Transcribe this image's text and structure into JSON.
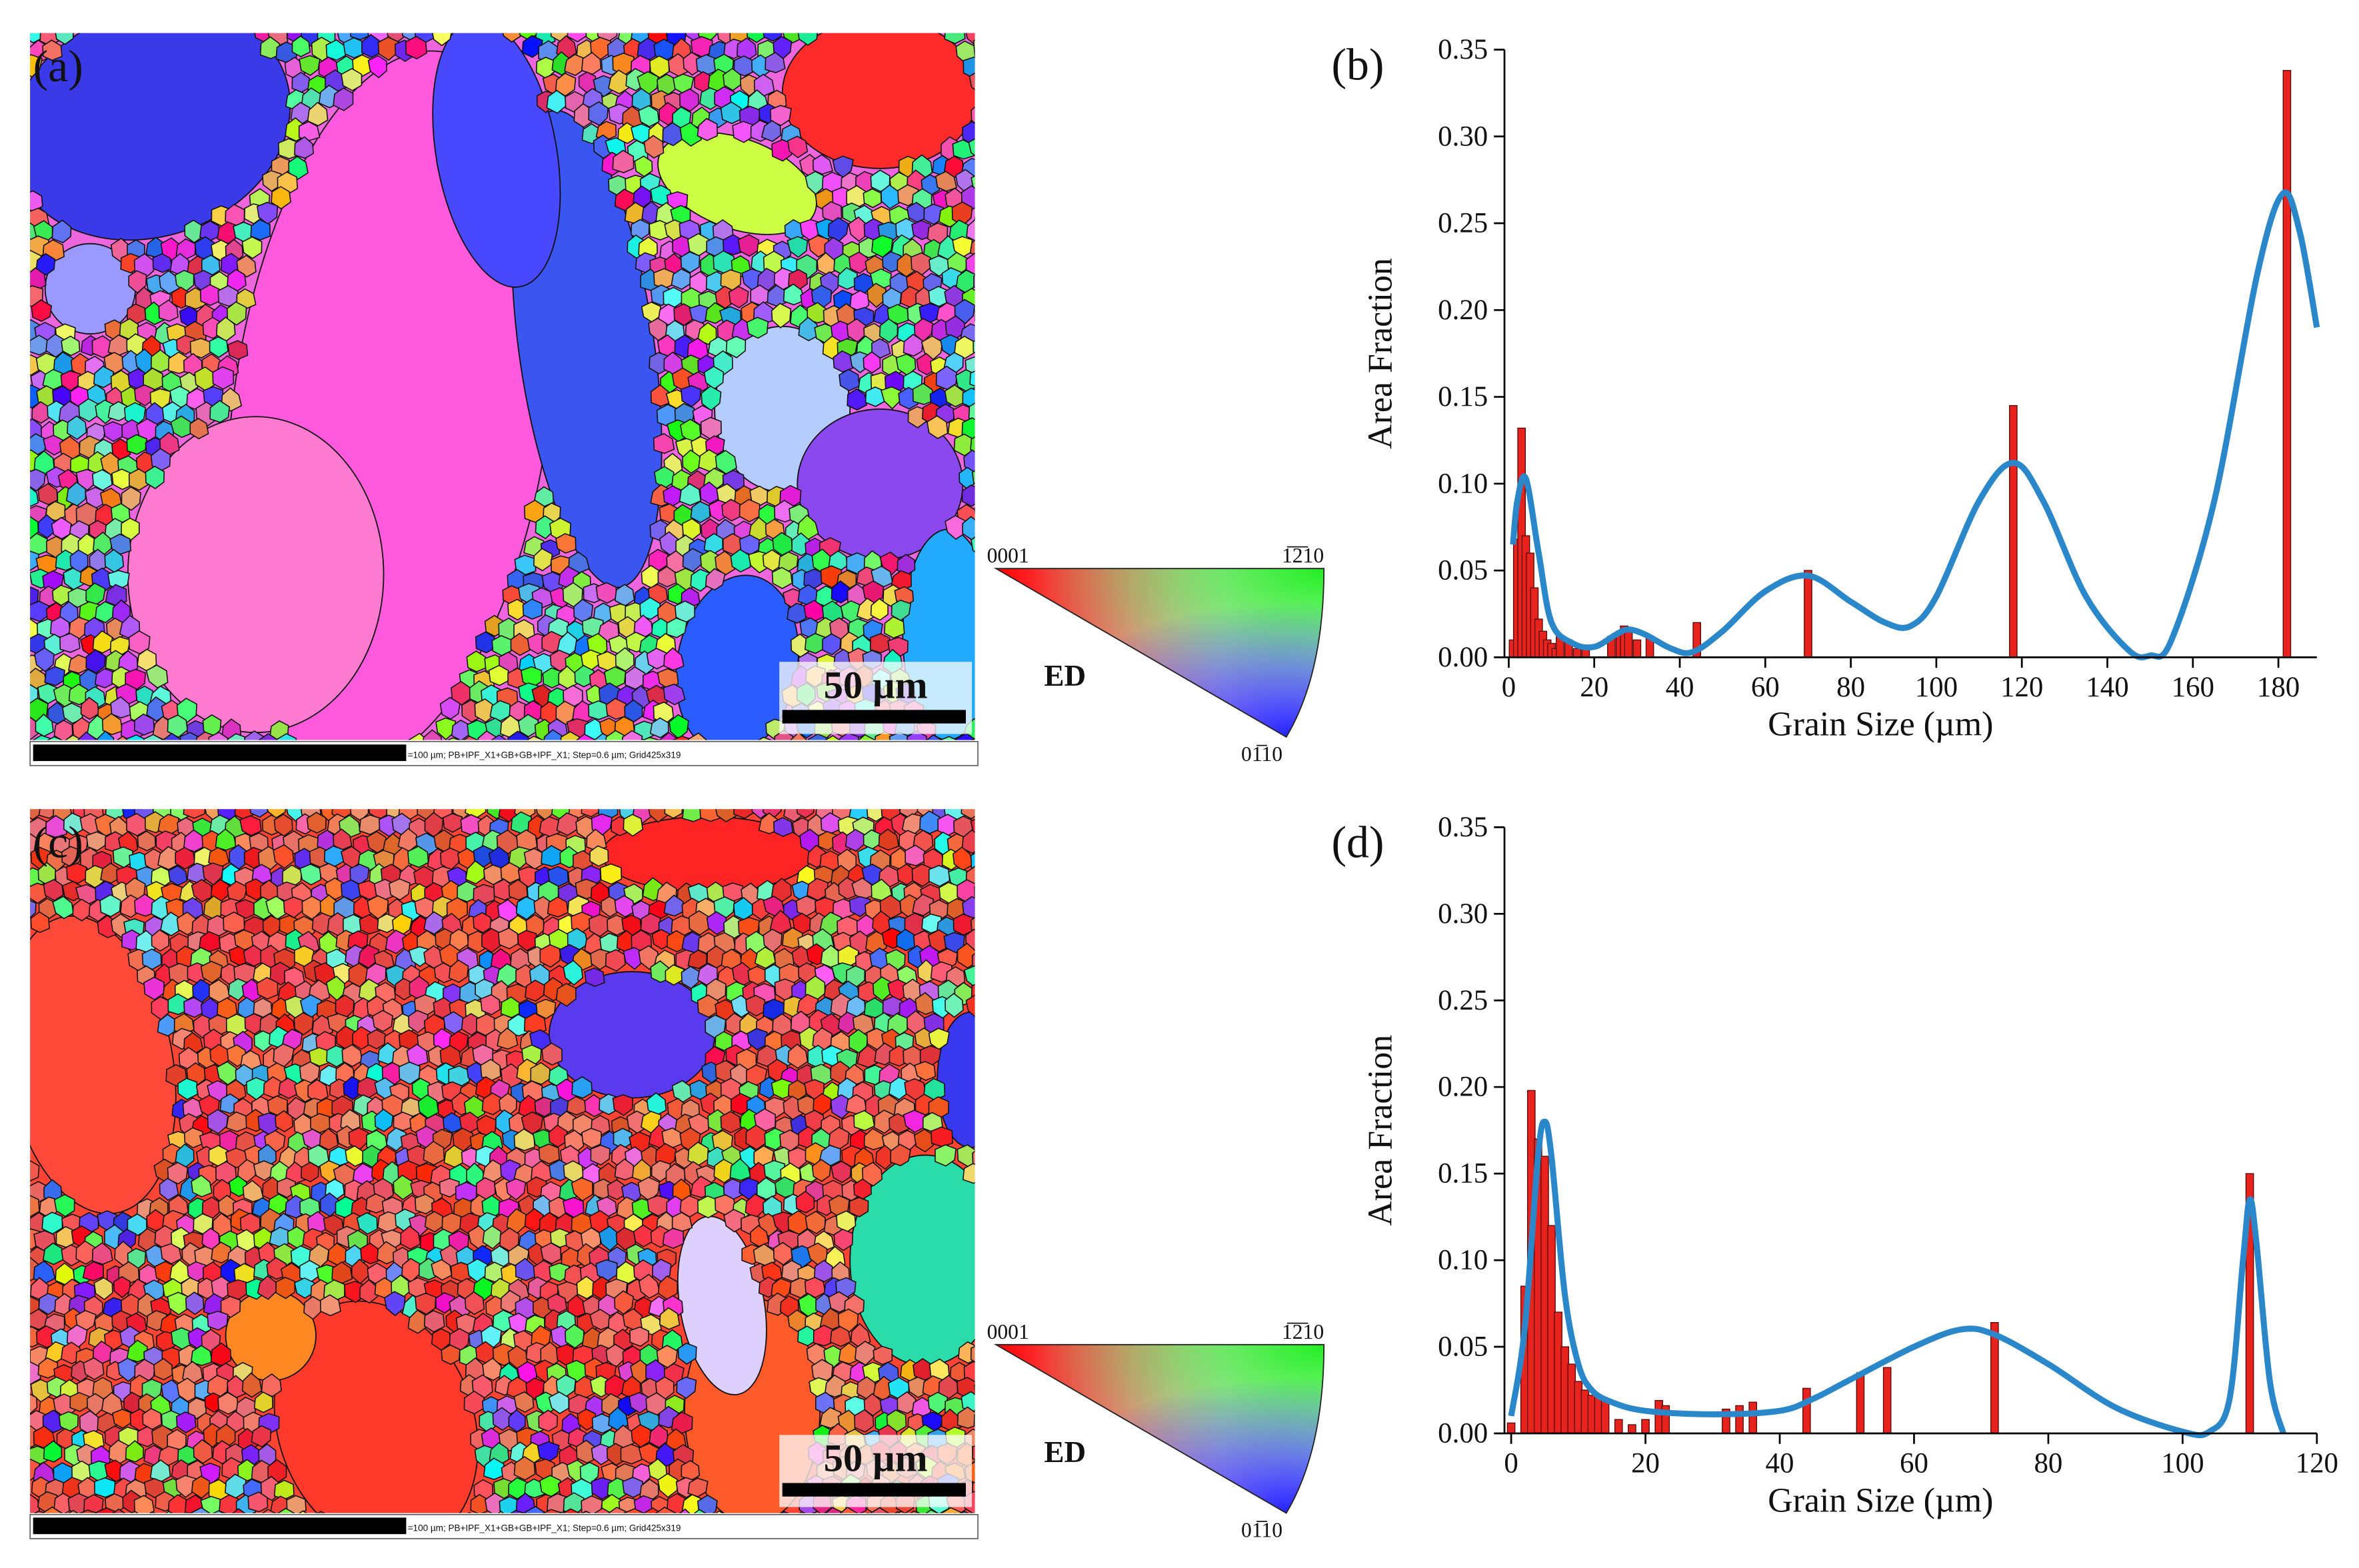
{
  "maps": [
    {
      "label": "(a)",
      "scale_bar": "50 µm",
      "caption": "=100 µm; PB+IPF_X1+GB+GB+IPF_X1; Step=0.6 µm; Grid425x319",
      "ipf": {
        "top_left": "0001",
        "top_right": "1̅2̅10",
        "bottom": "01̅10",
        "direction": "ED"
      }
    },
    {
      "label": "(c)",
      "scale_bar": "50 µm",
      "caption": "=100 µm; PB+IPF_X1+GB+GB+IPF_X1; Step=0.6 µm; Grid425x319",
      "ipf": {
        "top_left": "0001",
        "top_right": "1̅2̅10",
        "bottom": "01̅10",
        "direction": "ED"
      }
    }
  ],
  "chart_data": [
    {
      "type": "bar",
      "panel_label": "(b)",
      "xlabel": "Grain Size (µm)",
      "ylabel": "Area Fraction",
      "color": "#e8231e",
      "x": [
        1,
        2,
        3,
        4,
        5,
        6,
        7,
        8,
        9,
        10,
        11,
        12,
        14,
        16,
        18,
        24,
        26,
        27,
        28,
        30,
        33,
        44,
        70,
        118,
        182
      ],
      "values": [
        0.01,
        0.068,
        0.132,
        0.07,
        0.06,
        0.04,
        0.022,
        0.015,
        0.01,
        0.008,
        0.005,
        0.012,
        0.01,
        0.005,
        0.005,
        0.012,
        0.015,
        0.018,
        0.015,
        0.01,
        0.012,
        0.02,
        0.05,
        0.145,
        0.338
      ],
      "fit": {
        "color": "#2a87c9",
        "x": [
          1,
          2,
          4,
          7,
          10,
          15,
          20,
          25,
          28,
          32,
          38,
          43,
          50,
          60,
          70,
          80,
          88,
          94,
          100,
          110,
          118,
          125,
          135,
          145,
          150,
          155,
          165,
          175,
          181,
          185,
          189
        ],
        "values": [
          0.065,
          0.09,
          0.103,
          0.06,
          0.02,
          0.008,
          0.006,
          0.013,
          0.016,
          0.013,
          0.005,
          0.003,
          0.015,
          0.038,
          0.047,
          0.032,
          0.02,
          0.018,
          0.035,
          0.09,
          0.112,
          0.09,
          0.035,
          0.004,
          0.001,
          0.01,
          0.09,
          0.22,
          0.267,
          0.245,
          0.19
        ]
      },
      "xlim": [
        -1,
        189
      ],
      "ylim": [
        0,
        0.35
      ],
      "xticks": [
        0,
        20,
        40,
        60,
        80,
        100,
        120,
        140,
        160,
        180
      ],
      "yticks": [
        {
          "value": 0,
          "label": "0.00"
        },
        {
          "value": 0.05,
          "label": "0.05"
        },
        {
          "value": 0.1,
          "label": "0.10"
        },
        {
          "value": 0.15,
          "label": "0.15"
        },
        {
          "value": 0.2,
          "label": "0.20"
        },
        {
          "value": 0.25,
          "label": "0.25"
        },
        {
          "value": 0.3,
          "label": "0.30"
        },
        {
          "value": 0.35,
          "label": "0.35"
        }
      ]
    },
    {
      "type": "bar",
      "panel_label": "(d)",
      "xlabel": "Grain Size (µm)",
      "ylabel": "Area Fraction",
      "color": "#e8231e",
      "x": [
        0,
        2,
        3,
        4,
        5,
        6,
        7,
        8,
        9,
        10,
        11,
        12,
        13,
        14,
        16,
        18,
        20,
        22,
        23,
        32,
        34,
        36,
        44,
        52,
        56,
        72,
        110
      ],
      "values": [
        0.006,
        0.085,
        0.198,
        0.17,
        0.16,
        0.12,
        0.07,
        0.05,
        0.04,
        0.03,
        0.025,
        0.022,
        0.022,
        0.02,
        0.008,
        0.005,
        0.008,
        0.019,
        0.016,
        0.014,
        0.016,
        0.018,
        0.026,
        0.035,
        0.038,
        0.064,
        0.15
      ],
      "fit": {
        "color": "#2a87c9",
        "x": [
          0,
          2,
          4,
          5,
          6,
          8,
          10,
          12,
          15,
          20,
          30,
          40,
          45,
          50,
          60,
          67,
          72,
          80,
          90,
          100,
          104,
          107,
          109,
          110,
          111,
          113,
          115
        ],
        "values": [
          0.01,
          0.06,
          0.16,
          0.18,
          0.16,
          0.08,
          0.04,
          0.025,
          0.018,
          0.013,
          0.011,
          0.013,
          0.02,
          0.03,
          0.05,
          0.06,
          0.057,
          0.04,
          0.015,
          0.001,
          0.001,
          0.02,
          0.1,
          0.135,
          0.11,
          0.03,
          0
        ]
      },
      "xlim": [
        -1,
        120
      ],
      "ylim": [
        0,
        0.35
      ],
      "xticks": [
        0,
        20,
        40,
        60,
        80,
        100,
        120
      ],
      "yticks": [
        {
          "value": 0,
          "label": "0.00"
        },
        {
          "value": 0.05,
          "label": "0.05"
        },
        {
          "value": 0.1,
          "label": "0.10"
        },
        {
          "value": 0.15,
          "label": "0.15"
        },
        {
          "value": 0.2,
          "label": "0.20"
        },
        {
          "value": 0.25,
          "label": "0.25"
        },
        {
          "value": 0.3,
          "label": "0.30"
        },
        {
          "value": 0.35,
          "label": "0.35"
        }
      ]
    }
  ]
}
